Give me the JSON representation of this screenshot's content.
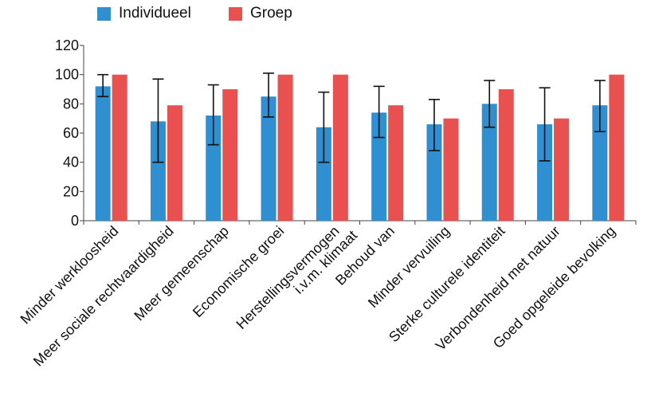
{
  "chart_data": {
    "type": "bar",
    "title": "",
    "xlabel": "",
    "ylabel": "",
    "ylim": [
      0,
      120
    ],
    "yticks": [
      0,
      20,
      40,
      60,
      80,
      100,
      120
    ],
    "grid": false,
    "legend_position": "top-left",
    "categories": [
      [
        "Minder werkloosheid"
      ],
      [
        "Meer sociale rechtvaardigheid"
      ],
      [
        "Meer gemeenschap"
      ],
      [
        "Economische groei"
      ],
      [
        "Herstellingsvermogen",
        "i.v.m. klimaat"
      ],
      [
        "Behoud van"
      ],
      [
        "Minder vervuiling"
      ],
      [
        "Sterke culturele identiteit"
      ],
      [
        "Verbondenheid met natuur"
      ],
      [
        "Goed opgeleide bevolking"
      ]
    ],
    "series": [
      {
        "name": "Individueel",
        "color": "#2f8fd1",
        "values": [
          92,
          68,
          72,
          85,
          64,
          74,
          66,
          80,
          66,
          79
        ],
        "error_low": [
          85,
          40,
          52,
          71,
          40,
          57,
          48,
          64,
          41,
          61
        ],
        "error_high": [
          100,
          97,
          93,
          101,
          88,
          92,
          83,
          96,
          91,
          96
        ]
      },
      {
        "name": "Groep",
        "color": "#e8514f",
        "values": [
          100,
          79,
          90,
          100,
          100,
          79,
          70,
          90,
          70,
          100
        ]
      }
    ]
  }
}
